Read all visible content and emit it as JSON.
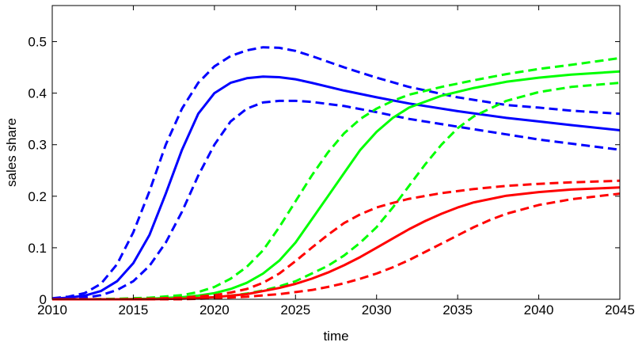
{
  "chart_data": {
    "type": "line",
    "title": "",
    "xlabel": "time",
    "ylabel": "sales share",
    "xlim": [
      2010,
      2045
    ],
    "ylim": [
      0,
      0.57
    ],
    "xticks": [
      2010,
      2015,
      2020,
      2025,
      2030,
      2035,
      2040,
      2045
    ],
    "yticks": [
      0,
      0.1,
      0.2,
      0.3,
      0.4,
      0.5
    ],
    "ytick_labels": [
      "0",
      "0.1",
      "0.2",
      "0.3",
      "0.4",
      "0.5"
    ],
    "grid": false,
    "legend": "none",
    "series": [
      {
        "color": "#0000ff",
        "style": "dashed",
        "x": [
          2010,
          2011,
          2012,
          2013,
          2014,
          2015,
          2016,
          2017,
          2018,
          2019,
          2020,
          2021,
          2022,
          2023,
          2024,
          2025,
          2026,
          2028,
          2030,
          2032,
          2035,
          2038,
          2040,
          2042,
          2045
        ],
        "y": [
          0.002,
          0.005,
          0.012,
          0.03,
          0.068,
          0.13,
          0.21,
          0.3,
          0.37,
          0.42,
          0.452,
          0.472,
          0.483,
          0.489,
          0.488,
          0.482,
          0.472,
          0.45,
          0.43,
          0.412,
          0.392,
          0.377,
          0.372,
          0.366,
          0.36
        ]
      },
      {
        "color": "#0000ff",
        "style": "solid",
        "x": [
          2010,
          2011,
          2012,
          2013,
          2014,
          2015,
          2016,
          2017,
          2018,
          2019,
          2020,
          2021,
          2022,
          2023,
          2024,
          2025,
          2026,
          2028,
          2030,
          2032,
          2035,
          2038,
          2040,
          2042,
          2045
        ],
        "y": [
          0.001,
          0.003,
          0.007,
          0.016,
          0.035,
          0.07,
          0.125,
          0.205,
          0.29,
          0.36,
          0.4,
          0.42,
          0.429,
          0.432,
          0.431,
          0.427,
          0.42,
          0.405,
          0.392,
          0.38,
          0.365,
          0.352,
          0.345,
          0.338,
          0.328
        ]
      },
      {
        "color": "#0000ff",
        "style": "dashed",
        "x": [
          2010,
          2011,
          2012,
          2013,
          2014,
          2015,
          2016,
          2017,
          2018,
          2019,
          2020,
          2021,
          2022,
          2023,
          2024,
          2025,
          2026,
          2028,
          2030,
          2032,
          2035,
          2038,
          2040,
          2042,
          2045
        ],
        "y": [
          0.0,
          0.001,
          0.003,
          0.008,
          0.018,
          0.035,
          0.065,
          0.11,
          0.17,
          0.24,
          0.3,
          0.345,
          0.37,
          0.382,
          0.385,
          0.385,
          0.383,
          0.375,
          0.363,
          0.35,
          0.335,
          0.32,
          0.31,
          0.302,
          0.29
        ]
      },
      {
        "color": "#00ff00",
        "style": "dashed",
        "x": [
          2010,
          2012,
          2014,
          2016,
          2018,
          2019,
          2020,
          2021,
          2022,
          2023,
          2024,
          2025,
          2026,
          2027,
          2028,
          2029,
          2030,
          2031,
          2032,
          2034,
          2036,
          2038,
          2040,
          2042,
          2045
        ],
        "y": [
          0,
          0,
          0.001,
          0.003,
          0.008,
          0.014,
          0.024,
          0.04,
          0.063,
          0.095,
          0.14,
          0.19,
          0.24,
          0.285,
          0.322,
          0.35,
          0.37,
          0.385,
          0.397,
          0.412,
          0.425,
          0.437,
          0.447,
          0.455,
          0.468
        ]
      },
      {
        "color": "#00ff00",
        "style": "solid",
        "x": [
          2010,
          2012,
          2014,
          2016,
          2018,
          2019,
          2020,
          2021,
          2022,
          2023,
          2024,
          2025,
          2026,
          2027,
          2028,
          2029,
          2030,
          2031,
          2032,
          2034,
          2036,
          2038,
          2040,
          2042,
          2045
        ],
        "y": [
          0,
          0,
          0,
          0.001,
          0.004,
          0.007,
          0.012,
          0.02,
          0.032,
          0.05,
          0.075,
          0.11,
          0.155,
          0.2,
          0.245,
          0.29,
          0.325,
          0.352,
          0.372,
          0.395,
          0.41,
          0.422,
          0.43,
          0.436,
          0.442
        ]
      },
      {
        "color": "#00ff00",
        "style": "dashed",
        "x": [
          2010,
          2012,
          2014,
          2016,
          2018,
          2020,
          2021,
          2022,
          2023,
          2024,
          2025,
          2026,
          2027,
          2028,
          2029,
          2030,
          2031,
          2032,
          2033,
          2034,
          2035,
          2036,
          2038,
          2040,
          2042,
          2045
        ],
        "y": [
          0,
          0,
          0,
          0,
          0.001,
          0.004,
          0.007,
          0.011,
          0.017,
          0.025,
          0.035,
          0.05,
          0.065,
          0.085,
          0.11,
          0.14,
          0.178,
          0.22,
          0.262,
          0.3,
          0.332,
          0.355,
          0.385,
          0.402,
          0.412,
          0.42
        ]
      },
      {
        "color": "#ff0000",
        "style": "dashed",
        "x": [
          2010,
          2012,
          2014,
          2016,
          2018,
          2020,
          2021,
          2022,
          2023,
          2024,
          2025,
          2026,
          2027,
          2028,
          2029,
          2030,
          2031,
          2032,
          2034,
          2036,
          2038,
          2040,
          2042,
          2045
        ],
        "y": [
          0,
          0,
          0,
          0.001,
          0.003,
          0.008,
          0.013,
          0.02,
          0.032,
          0.05,
          0.074,
          0.1,
          0.125,
          0.148,
          0.165,
          0.178,
          0.187,
          0.195,
          0.206,
          0.214,
          0.22,
          0.224,
          0.227,
          0.23
        ]
      },
      {
        "color": "#ff0000",
        "style": "solid",
        "x": [
          2010,
          2012,
          2014,
          2016,
          2018,
          2020,
          2022,
          2024,
          2025,
          2026,
          2027,
          2028,
          2029,
          2030,
          2031,
          2032,
          2033,
          2034,
          2035,
          2036,
          2038,
          2040,
          2042,
          2045
        ],
        "y": [
          0,
          0,
          0,
          0,
          0.001,
          0.004,
          0.01,
          0.022,
          0.03,
          0.04,
          0.052,
          0.066,
          0.082,
          0.1,
          0.118,
          0.136,
          0.152,
          0.166,
          0.178,
          0.188,
          0.201,
          0.208,
          0.213,
          0.217
        ]
      },
      {
        "color": "#ff0000",
        "style": "dashed",
        "x": [
          2010,
          2012,
          2014,
          2016,
          2018,
          2020,
          2022,
          2024,
          2026,
          2027,
          2028,
          2029,
          2030,
          2031,
          2032,
          2033,
          2034,
          2035,
          2036,
          2037,
          2038,
          2040,
          2042,
          2045
        ],
        "y": [
          0,
          0,
          0,
          0,
          0,
          0.002,
          0.005,
          0.01,
          0.018,
          0.024,
          0.031,
          0.04,
          0.05,
          0.062,
          0.076,
          0.092,
          0.108,
          0.124,
          0.14,
          0.154,
          0.166,
          0.183,
          0.194,
          0.205
        ]
      }
    ]
  }
}
